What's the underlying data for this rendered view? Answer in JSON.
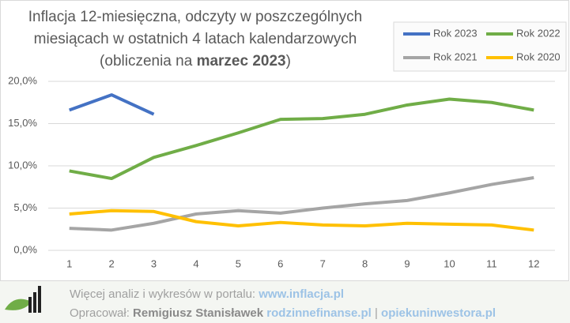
{
  "chart_data": {
    "type": "line",
    "title": [
      "Inflacja 12-miesięczna,  odczyty w poszczególnych",
      "miesiącach  w ostatnich 4 latach kalendarzowych",
      "(obliczenia  na "
    ],
    "title_bold": "marzec 2023",
    "title_end": ")",
    "x": [
      1,
      2,
      3,
      4,
      5,
      6,
      7,
      8,
      9,
      10,
      11,
      12
    ],
    "xlim": [
      0.5,
      12.5
    ],
    "xticks": [
      1,
      2,
      3,
      4,
      5,
      6,
      7,
      8,
      9,
      10,
      11,
      12
    ],
    "ylim": [
      0,
      20
    ],
    "yticks": [
      {
        "value": 0,
        "label": "0,0%"
      },
      {
        "value": 5,
        "label": "5,0%"
      },
      {
        "value": 10,
        "label": "10,0%"
      },
      {
        "value": 15,
        "label": "15,0%"
      },
      {
        "value": 20,
        "label": "20,0%"
      }
    ],
    "grid": true,
    "legend": "top-right",
    "series": [
      {
        "name": "Rok 2023",
        "color": "#4472c4",
        "values": [
          16.6,
          18.4,
          16.1,
          null,
          null,
          null,
          null,
          null,
          null,
          null,
          null,
          null
        ]
      },
      {
        "name": "Rok 2022",
        "color": "#70ad47",
        "values": [
          9.4,
          8.5,
          11.0,
          12.4,
          13.9,
          15.5,
          15.6,
          16.1,
          17.2,
          17.9,
          17.5,
          16.6
        ]
      },
      {
        "name": "Rok 2021",
        "color": "#a5a5a5",
        "values": [
          2.6,
          2.4,
          3.2,
          4.3,
          4.7,
          4.4,
          5.0,
          5.5,
          5.9,
          6.8,
          7.8,
          8.6
        ]
      },
      {
        "name": "Rok 2020",
        "color": "#ffc000",
        "values": [
          4.3,
          4.7,
          4.6,
          3.4,
          2.9,
          3.3,
          3.0,
          2.9,
          3.2,
          3.1,
          3.0,
          2.4
        ]
      }
    ]
  },
  "footer": {
    "line1": [
      "Więcej analiz i wykresów w portalu: ",
      "www.inflacja.pl"
    ],
    "line2": [
      "Opracował: ",
      "Remigiusz Stanisławek",
      " rodzinnefinanse.pl",
      " | ",
      "opiekuninwestora.pl"
    ]
  }
}
